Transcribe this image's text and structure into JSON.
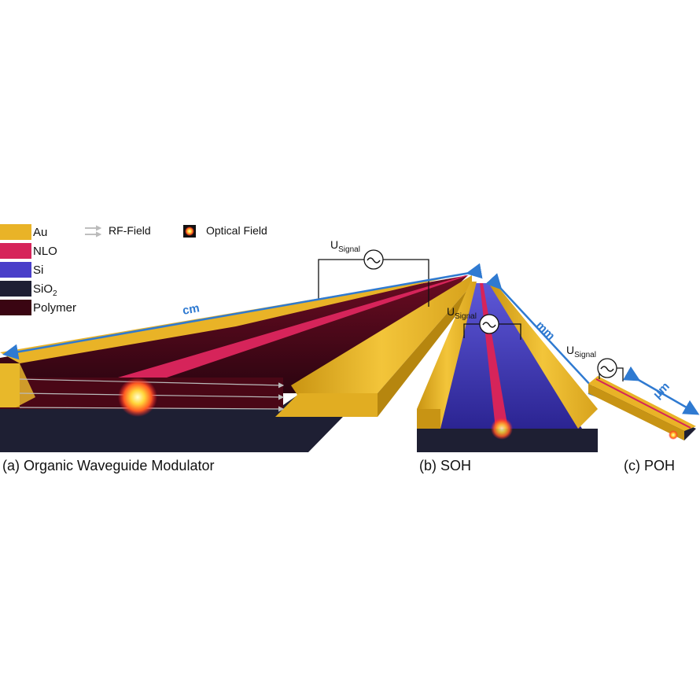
{
  "legend": {
    "materials": [
      {
        "name": "Au",
        "color": "#e9b327"
      },
      {
        "name": "NLO",
        "color": "#d6245a"
      },
      {
        "name": "Si",
        "color": "#4a3fc9"
      },
      {
        "name": "SiO",
        "sub": "2",
        "color": "#1e1f33"
      },
      {
        "name": "Polymer",
        "color": "#3a0512"
      }
    ],
    "rf_field": "RF-Field",
    "optical_field": "Optical Field"
  },
  "signal": {
    "main": "U",
    "sub": "Signal"
  },
  "scales": {
    "a": "cm",
    "b": "mm",
    "c": "µm"
  },
  "captions": {
    "a": "(a) Organic Waveguide Modulator",
    "b": "(b) SOH",
    "c": "(c) POH"
  },
  "colors": {
    "arrow": "#2f7ad1",
    "gold": "#e9b327",
    "nlo": "#d6245a",
    "si": "#4a3fc9",
    "substrate": "#1e1f33",
    "polymer": "#3a0512"
  }
}
